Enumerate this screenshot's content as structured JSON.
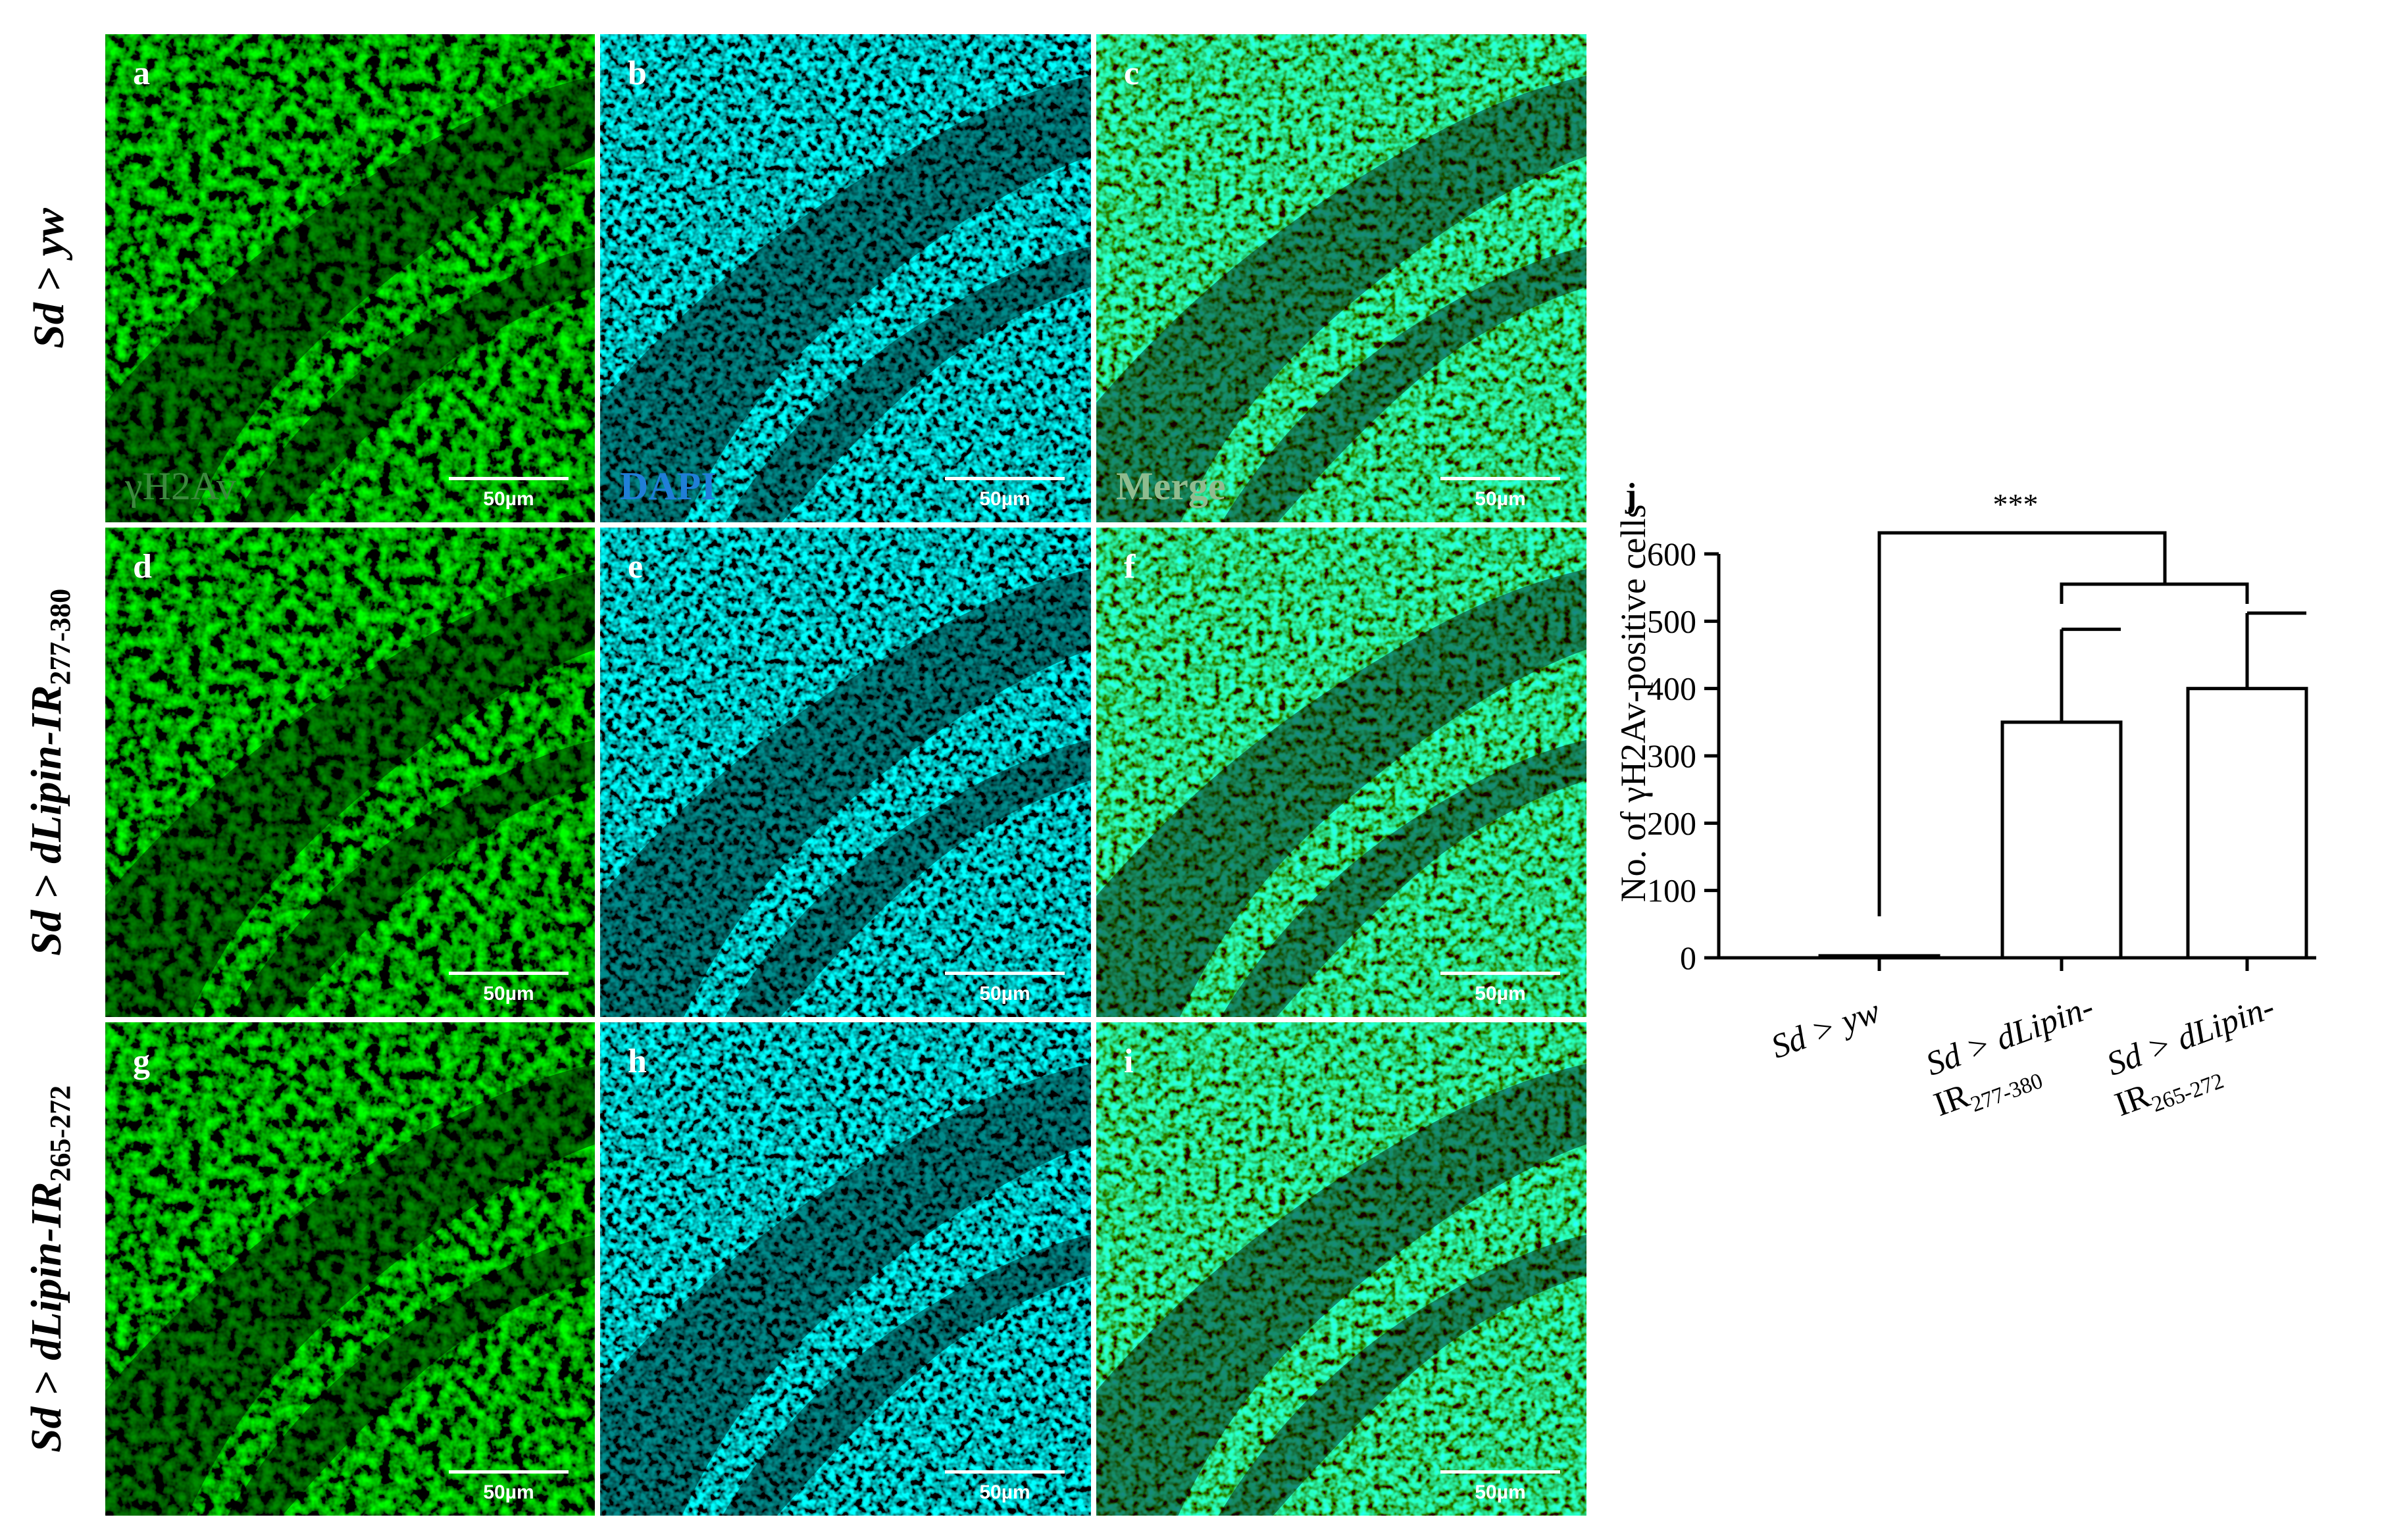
{
  "figure": {
    "row_labels": [
      {
        "name": "Sd > yw",
        "genotype": "Sd > yw",
        "subscript": ""
      },
      {
        "name": "Sd > dLipin-IR277-380",
        "genotype": "Sd > dLipin-IR",
        "subscript": "277-380"
      },
      {
        "name": "Sd > dLipin-IR265-272",
        "genotype": "Sd > dLipin-IR",
        "subscript": "265-272"
      }
    ],
    "panels": [
      {
        "letter": "a",
        "channel": "gamma",
        "channel_label": "γH2Av",
        "scale": "50µm",
        "channel_color": "#3c8a3e"
      },
      {
        "letter": "b",
        "channel": "dapi",
        "channel_label": "DAPI",
        "scale": "50µm",
        "channel_color": "#1f7fd8"
      },
      {
        "letter": "c",
        "channel": "merge",
        "channel_label": "Merge",
        "scale": "50µm",
        "channel_color": "#8fbc8f"
      },
      {
        "letter": "d",
        "channel": "gamma",
        "channel_label": "",
        "scale": "50µm"
      },
      {
        "letter": "e",
        "channel": "dapi",
        "channel_label": "",
        "scale": "50µm"
      },
      {
        "letter": "f",
        "channel": "merge",
        "channel_label": "",
        "scale": "50µm"
      },
      {
        "letter": "g",
        "channel": "gamma",
        "channel_label": "",
        "scale": "50µm"
      },
      {
        "letter": "h",
        "channel": "dapi",
        "channel_label": "",
        "scale": "50µm"
      },
      {
        "letter": "i",
        "channel": "merge",
        "channel_label": "",
        "scale": "50µm"
      }
    ]
  },
  "chart_data": {
    "type": "bar",
    "panel_letter": "j",
    "ylabel": "No. of γH2Av-positive  cells",
    "ylim": [
      0,
      600
    ],
    "yticks": [
      0,
      100,
      200,
      300,
      400,
      500,
      600
    ],
    "categories": [
      {
        "label": "Sd > yw",
        "line1": "Sd > yw",
        "line2": "",
        "sub": ""
      },
      {
        "label": "Sd > dLipin-IR277-380",
        "line1": "Sd > dLipin-",
        "line2": "IR",
        "sub": "277-380"
      },
      {
        "label": "Sd > dLipin-IR265-272",
        "line1": "Sd > dLipin-",
        "line2": "IR",
        "sub": "265-272"
      }
    ],
    "values": [
      3,
      350,
      400
    ],
    "errors": [
      0,
      138,
      112
    ],
    "significance": "***"
  }
}
